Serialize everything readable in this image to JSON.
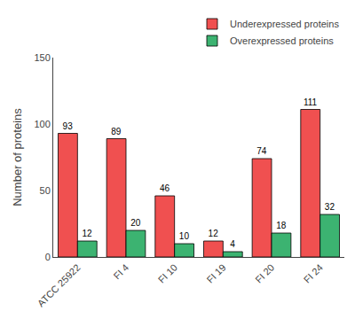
{
  "chart_data": {
    "type": "bar",
    "categories": [
      "ATCC 25922",
      "FI 4",
      "FI 10",
      "FI 19",
      "FI 20",
      "FI 24"
    ],
    "series": [
      {
        "name": "Underexpressed proteins",
        "color": "#F05050",
        "values": [
          93,
          89,
          46,
          12,
          74,
          111
        ]
      },
      {
        "name": "Overexpressed proteins",
        "color": "#3CB371",
        "values": [
          12,
          20,
          10,
          4,
          18,
          32
        ]
      }
    ],
    "ylabel": "Number of proteins",
    "ylim": [
      0,
      150
    ],
    "yticks": [
      0,
      50,
      100,
      150
    ],
    "grid": false,
    "legend": "upper right",
    "data_labels": true
  }
}
